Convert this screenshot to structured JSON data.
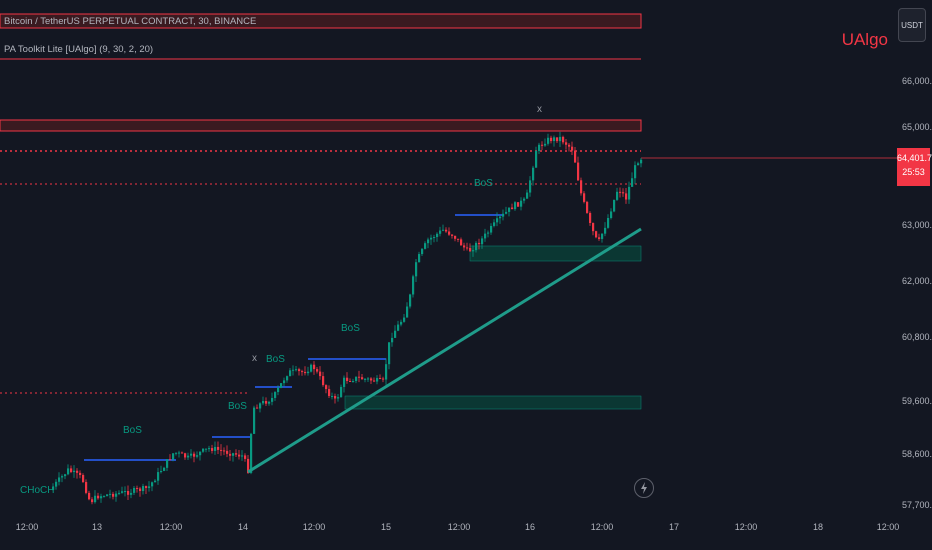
{
  "header": {
    "symbol_line": "Bitcoin / TetherUS PERPETUAL CONTRACT, 30, BINANCE",
    "indicator_line": "PA Toolkit Lite [UAlgo] (9, 30, 2, 20)"
  },
  "brand": "UAlgo",
  "currency_button": "USDT",
  "price_axis": {
    "ticks": [
      "66,000.0",
      "65,000.0",
      "63,000.0",
      "62,000.0",
      "60,800.0",
      "59,600.0",
      "58,600.0",
      "57,700.0"
    ],
    "last_price": "64,401.7",
    "countdown": "25:53"
  },
  "time_axis": [
    "12:00",
    "13",
    "12:00",
    "14",
    "12:00",
    "15",
    "12:00",
    "16",
    "12:00",
    "17",
    "12:00",
    "18",
    "12:00"
  ],
  "labels": {
    "choch": "CHoCH",
    "bos": "BoS",
    "x": "x"
  },
  "colors": {
    "background": "#131722",
    "up": "#089981",
    "down": "#f23645",
    "bos_line": "#2962ff",
    "trendline": "#1f9c8a"
  }
}
